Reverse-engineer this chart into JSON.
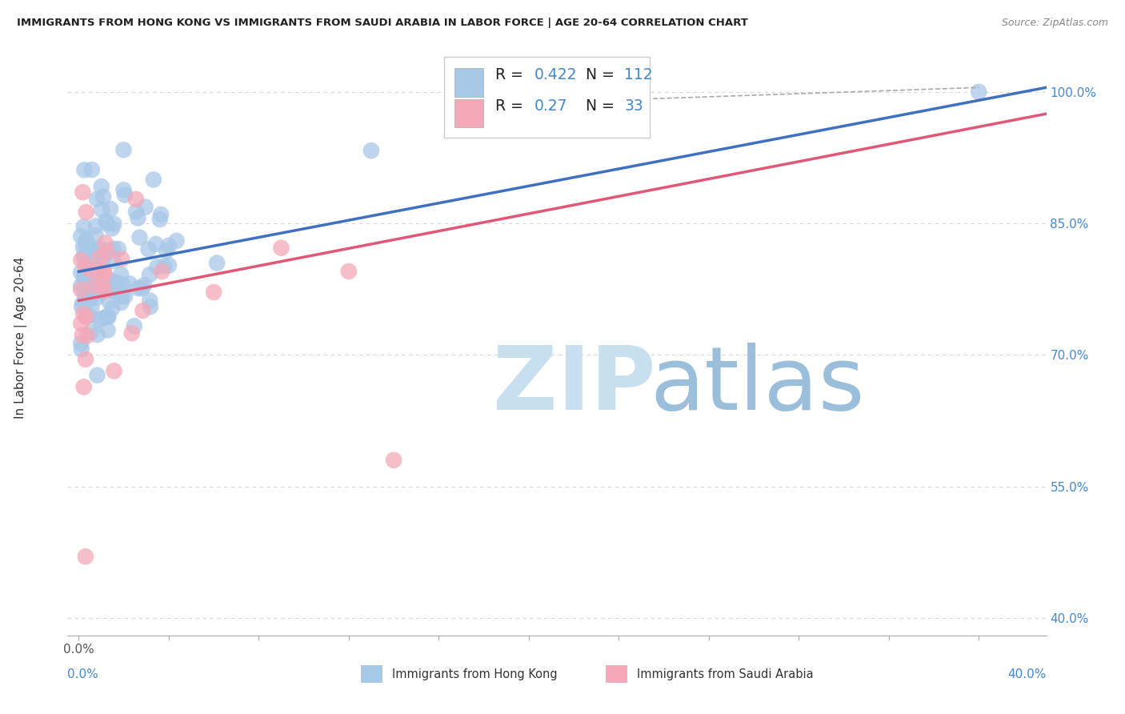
{
  "title": "IMMIGRANTS FROM HONG KONG VS IMMIGRANTS FROM SAUDI ARABIA IN LABOR FORCE | AGE 20-64 CORRELATION CHART",
  "source": "Source: ZipAtlas.com",
  "ylabel": "In Labor Force | Age 20-64",
  "xlim": [
    -0.005,
    0.43
  ],
  "ylim": [
    0.38,
    1.06
  ],
  "yticks": [
    0.4,
    0.55,
    0.7,
    0.85,
    1.0
  ],
  "ytick_labels": [
    "40.0%",
    "55.0%",
    "70.0%",
    "85.0%",
    "100.0%"
  ],
  "hk_color": "#A8C8E8",
  "sa_color": "#F4A8B8",
  "hk_line_color": "#4070C0",
  "sa_line_color": "#E05878",
  "hk_R": 0.422,
  "hk_N": 112,
  "sa_R": 0.27,
  "sa_N": 33,
  "background_color": "#ffffff",
  "grid_color": "#cccccc",
  "hk_line_x0": 0.0,
  "hk_line_y0": 0.795,
  "hk_line_x1": 0.43,
  "hk_line_y1": 1.005,
  "sa_line_x0": 0.0,
  "sa_line_y0": 0.762,
  "sa_line_x1": 0.43,
  "sa_line_y1": 0.975,
  "dash_line_x0": 0.23,
  "dash_line_y0": 0.99,
  "dash_line_x1": 0.4,
  "dash_line_y1": 1.005
}
